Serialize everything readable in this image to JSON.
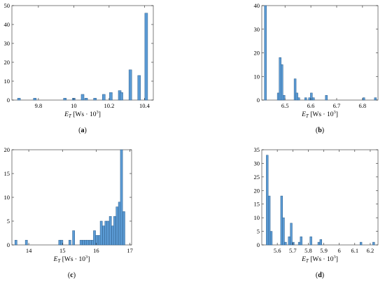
{
  "chart_data": [
    {
      "type": "histogram",
      "caption": {
        "pre": "(",
        "letter": "a",
        "post": ")"
      },
      "xlabel": {
        "sym": "E",
        "sub": "T",
        "unit": "[Ws · 10",
        "exp": "3",
        "close": "]"
      },
      "xlim": [
        9.65,
        10.45
      ],
      "ylim": [
        0,
        50
      ],
      "xticks": [
        9.8,
        10,
        10.2,
        10.4
      ],
      "xtick_labels": [
        "9.8",
        "10",
        "10.2",
        "10.4"
      ],
      "yticks": [
        0,
        10,
        20,
        30,
        40,
        50
      ],
      "ytick_labels": [
        "0",
        "10",
        "20",
        "30",
        "40",
        "50"
      ],
      "bin_width": 0.016,
      "bars": [
        {
          "x": 9.69,
          "count": 1
        },
        {
          "x": 9.78,
          "count": 1
        },
        {
          "x": 9.95,
          "count": 1
        },
        {
          "x": 10.0,
          "count": 1
        },
        {
          "x": 10.05,
          "count": 3
        },
        {
          "x": 10.07,
          "count": 1
        },
        {
          "x": 10.12,
          "count": 1
        },
        {
          "x": 10.17,
          "count": 3
        },
        {
          "x": 10.21,
          "count": 4
        },
        {
          "x": 10.26,
          "count": 5
        },
        {
          "x": 10.27,
          "count": 4
        },
        {
          "x": 10.32,
          "count": 16
        },
        {
          "x": 10.37,
          "count": 13
        },
        {
          "x": 10.41,
          "count": 46
        }
      ]
    },
    {
      "type": "histogram",
      "caption": {
        "pre": "(",
        "letter": "b",
        "post": ")"
      },
      "xlabel": {
        "sym": "E",
        "sub": "T",
        "unit": "[Ws · 10",
        "exp": "3",
        "close": "]"
      },
      "xlim": [
        6.41,
        6.86
      ],
      "ylim": [
        0,
        40
      ],
      "xticks": [
        6.5,
        6.6,
        6.7,
        6.8
      ],
      "xtick_labels": [
        "6.5",
        "6.6",
        "6.7",
        "6.8"
      ],
      "yticks": [
        0,
        10,
        20,
        30,
        40
      ],
      "ytick_labels": [
        "0",
        "10",
        "20",
        "30",
        "40"
      ],
      "bin_width": 0.008,
      "bars": [
        {
          "x": 6.424,
          "count": 40
        },
        {
          "x": 6.474,
          "count": 3
        },
        {
          "x": 6.481,
          "count": 18
        },
        {
          "x": 6.488,
          "count": 15
        },
        {
          "x": 6.496,
          "count": 2
        },
        {
          "x": 6.539,
          "count": 9
        },
        {
          "x": 6.546,
          "count": 3
        },
        {
          "x": 6.553,
          "count": 1
        },
        {
          "x": 6.58,
          "count": 1
        },
        {
          "x": 6.595,
          "count": 1
        },
        {
          "x": 6.602,
          "count": 3
        },
        {
          "x": 6.61,
          "count": 1
        },
        {
          "x": 6.66,
          "count": 2
        },
        {
          "x": 6.805,
          "count": 1
        },
        {
          "x": 6.85,
          "count": 1
        }
      ]
    },
    {
      "type": "histogram",
      "caption": {
        "pre": "(",
        "letter": "c",
        "post": ")"
      },
      "xlabel": {
        "sym": "E",
        "sub": "T",
        "unit": "[Ws · 10",
        "exp": "3",
        "close": "]"
      },
      "xlim": [
        13.5,
        17.05
      ],
      "ylim": [
        0,
        20
      ],
      "xticks": [
        14,
        15,
        16,
        17
      ],
      "xtick_labels": [
        "14",
        "15",
        "16",
        "17"
      ],
      "yticks": [
        0,
        5,
        10,
        15,
        20
      ],
      "ytick_labels": [
        "0",
        "5",
        "10",
        "15",
        "20"
      ],
      "bin_width": 0.066,
      "bars": [
        {
          "x": 13.62,
          "count": 1
        },
        {
          "x": 13.93,
          "count": 1
        },
        {
          "x": 14.92,
          "count": 1
        },
        {
          "x": 14.98,
          "count": 1
        },
        {
          "x": 15.22,
          "count": 1
        },
        {
          "x": 15.33,
          "count": 3
        },
        {
          "x": 15.55,
          "count": 1
        },
        {
          "x": 15.62,
          "count": 1
        },
        {
          "x": 15.69,
          "count": 1
        },
        {
          "x": 15.75,
          "count": 1
        },
        {
          "x": 15.82,
          "count": 1
        },
        {
          "x": 15.89,
          "count": 1
        },
        {
          "x": 15.95,
          "count": 3
        },
        {
          "x": 16.02,
          "count": 2
        },
        {
          "x": 16.09,
          "count": 2
        },
        {
          "x": 16.15,
          "count": 5
        },
        {
          "x": 16.22,
          "count": 4
        },
        {
          "x": 16.29,
          "count": 5
        },
        {
          "x": 16.35,
          "count": 5
        },
        {
          "x": 16.42,
          "count": 6
        },
        {
          "x": 16.49,
          "count": 4
        },
        {
          "x": 16.55,
          "count": 6
        },
        {
          "x": 16.62,
          "count": 8
        },
        {
          "x": 16.69,
          "count": 9
        },
        {
          "x": 16.75,
          "count": 20
        },
        {
          "x": 16.82,
          "count": 7
        }
      ]
    },
    {
      "type": "histogram",
      "caption": {
        "pre": "(",
        "letter": "d",
        "post": ")"
      },
      "xlabel": {
        "sym": "E",
        "sub": "T",
        "unit": "[Ws · 10",
        "exp": "3",
        "close": "]"
      },
      "xlim": [
        5.5,
        6.25
      ],
      "ylim": [
        0,
        35
      ],
      "xticks": [
        5.6,
        5.7,
        5.8,
        5.9,
        6,
        6.1,
        6.2
      ],
      "xtick_labels": [
        "5.6",
        "5.7",
        "5.8",
        "5.9",
        "6",
        "6.1",
        "6.2"
      ],
      "yticks": [
        0,
        5,
        10,
        15,
        20,
        25,
        30,
        35
      ],
      "ytick_labels": [
        "0",
        "5",
        "10",
        "15",
        "20",
        "25",
        "30",
        "35"
      ],
      "bin_width": 0.0128,
      "bars": [
        {
          "x": 5.535,
          "count": 33
        },
        {
          "x": 5.548,
          "count": 18
        },
        {
          "x": 5.561,
          "count": 5
        },
        {
          "x": 5.628,
          "count": 18
        },
        {
          "x": 5.64,
          "count": 10
        },
        {
          "x": 5.653,
          "count": 1
        },
        {
          "x": 5.677,
          "count": 3
        },
        {
          "x": 5.69,
          "count": 8
        },
        {
          "x": 5.703,
          "count": 1
        },
        {
          "x": 5.742,
          "count": 1
        },
        {
          "x": 5.754,
          "count": 3
        },
        {
          "x": 5.817,
          "count": 3
        },
        {
          "x": 5.868,
          "count": 1
        },
        {
          "x": 5.881,
          "count": 2
        },
        {
          "x": 6.14,
          "count": 1
        },
        {
          "x": 6.222,
          "count": 1
        }
      ]
    }
  ]
}
